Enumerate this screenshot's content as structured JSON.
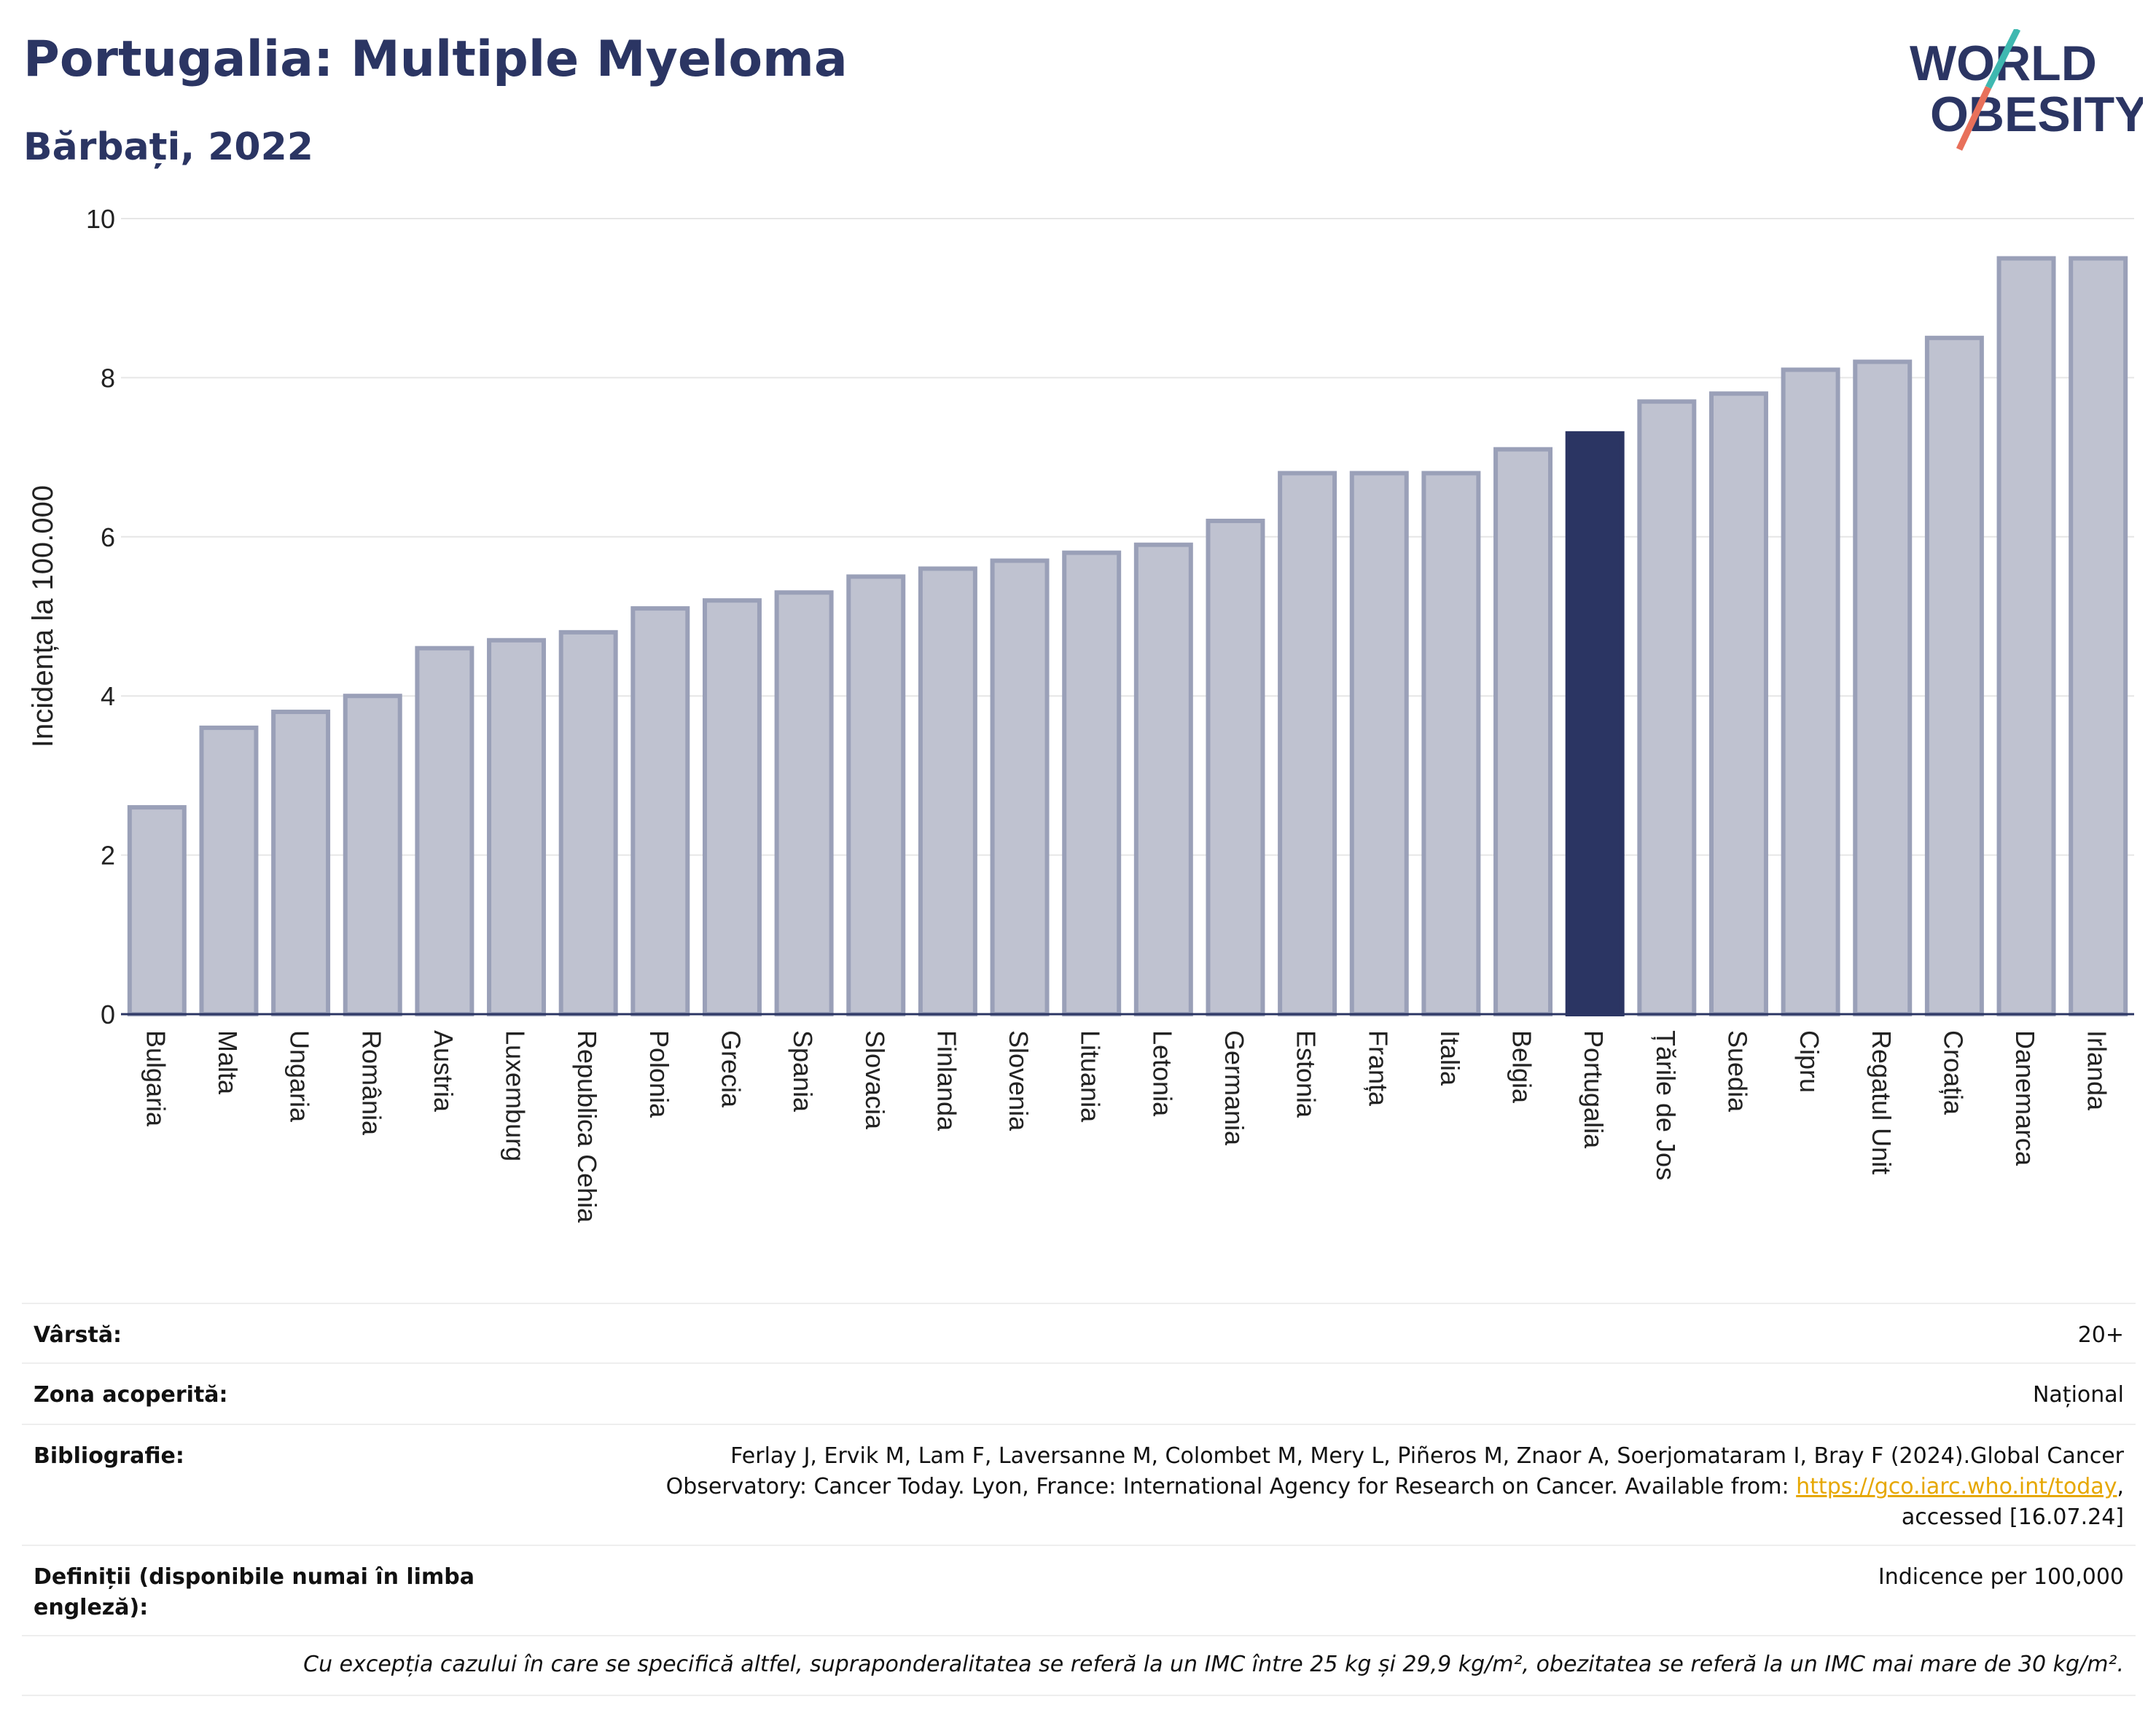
{
  "header": {
    "title": "Portugalia: Multiple Myeloma",
    "subtitle": "Bărbați, 2022",
    "logo_line1": "WORLD",
    "logo_line2": "OBESITY"
  },
  "chart_data": {
    "type": "bar",
    "ylabel": "Incidența la 100.000",
    "ylim": [
      0,
      10
    ],
    "yticks": [
      0,
      2,
      4,
      6,
      8,
      10
    ],
    "grid": true,
    "highlight": "Portugalia",
    "colors": {
      "bar": "#bfc2d0",
      "bar_edge": "#9aa0b8",
      "highlight": "#2b3563",
      "grid": "#e6e6e6"
    },
    "categories": [
      "Bulgaria",
      "Malta",
      "Ungaria",
      "România",
      "Austria",
      "Luxemburg",
      "Republica Cehia",
      "Polonia",
      "Grecia",
      "Spania",
      "Slovacia",
      "Finlanda",
      "Slovenia",
      "Lituania",
      "Letonia",
      "Germania",
      "Estonia",
      "Franța",
      "Italia",
      "Belgia",
      "Portugalia",
      "Țările de Jos",
      "Suedia",
      "Cipru",
      "Regatul Unit",
      "Croația",
      "Danemarca",
      "Irlanda"
    ],
    "values": [
      2.6,
      3.6,
      3.8,
      4.0,
      4.6,
      4.7,
      4.8,
      5.1,
      5.2,
      5.3,
      5.5,
      5.6,
      5.7,
      5.8,
      5.9,
      6.2,
      6.8,
      6.8,
      6.8,
      7.1,
      7.3,
      7.7,
      7.8,
      8.1,
      8.2,
      8.5,
      9.5,
      9.5
    ]
  },
  "info": {
    "age_label": "Vârstă:",
    "age_value": "20+",
    "area_label": "Zona acoperită:",
    "area_value": "Național",
    "biblio_label": "Bibliografie:",
    "biblio_line1": "Ferlay J, Ervik M, Lam F, Laversanne M, Colombet M, Mery L, Piñeros M, Znaor A, Soerjomataram I, Bray F (2024).Global Cancer",
    "biblio_line2": "Observatory: Cancer Today. Lyon, France: International Agency for Research on Cancer. Available from: ",
    "biblio_link": "https://gco.iarc.who.int/today",
    "biblio_comma": ",",
    "biblio_line3": "accessed [16.07.24]",
    "def_label": "Definiții (disponibile numai în limba engleză):",
    "def_value": "Indicence per 100,000",
    "note": "Cu excepția cazului în care se specifică altfel, supraponderalitatea se referă la un IMC între 25 kg și 29,9 kg/m², obezitatea se referă la un IMC mai mare de 30 kg/m²."
  }
}
